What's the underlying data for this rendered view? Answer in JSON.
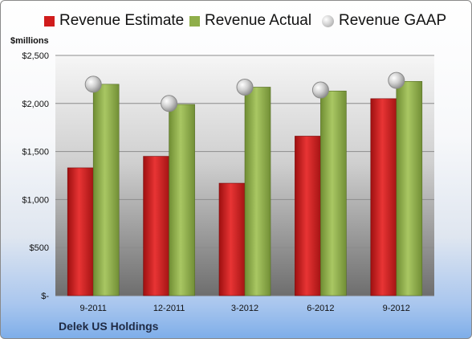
{
  "unit_label": "$millions",
  "company": "Delek US Holdings",
  "chart_data": {
    "type": "bar",
    "categories": [
      "9-2011",
      "12-2011",
      "3-2012",
      "6-2012",
      "9-2012"
    ],
    "series": [
      {
        "name": "Revenue Estimate",
        "kind": "bar",
        "color": "#d01c1c",
        "values": [
          1330,
          1450,
          1170,
          1660,
          2050
        ]
      },
      {
        "name": "Revenue Actual",
        "kind": "bar",
        "color": "#8fae4a",
        "values": [
          2200,
          1990,
          2170,
          2130,
          2230
        ]
      },
      {
        "name": "Revenue GAAP",
        "kind": "marker",
        "color": "#bdbdbd",
        "values": [
          2200,
          2000,
          2170,
          2140,
          2240
        ]
      }
    ],
    "yticks": [
      "$-",
      "$500",
      "$1,000",
      "$1,500",
      "$2,000",
      "$2,500"
    ],
    "ylim": [
      0,
      2500
    ],
    "grid": true,
    "legend": "top"
  }
}
